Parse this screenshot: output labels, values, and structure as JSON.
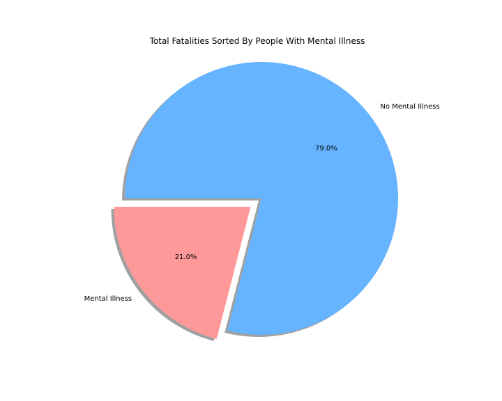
{
  "chart_data": {
    "type": "pie",
    "title": "Total Fatalities Sorted By People With Mental Illness",
    "slices": [
      {
        "label": "Mental Illness",
        "value": 21.0,
        "pct_label": "21.0%",
        "color": "#ff9999",
        "exploded": true
      },
      {
        "label": "No Mental Illness",
        "value": 79.0,
        "pct_label": "79.0%",
        "color": "#66b3ff",
        "exploded": false
      }
    ],
    "start_angle_deg": 180,
    "shadow": true,
    "legend": "none"
  }
}
